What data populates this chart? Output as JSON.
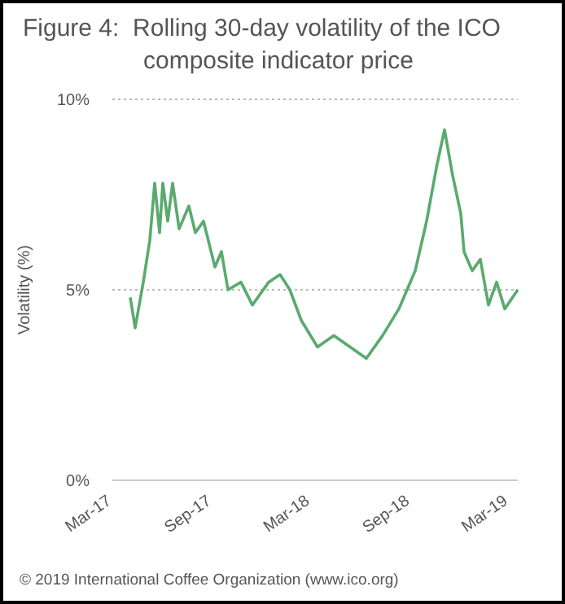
{
  "chart_data": {
    "type": "line",
    "title": "Figure 4:  Rolling 30-day volatility of the ICO composite indicator price",
    "ylabel": "Volatility (%)",
    "annotations": [
      "© 2019 International Coffee Organization (www.ico.org)"
    ],
    "x": [
      "2017-04-03",
      "2017-04-12",
      "2017-04-27",
      "2017-05-09",
      "2017-05-18",
      "2017-05-27",
      "2017-06-02",
      "2017-06-11",
      "2017-06-20",
      "2017-07-02",
      "2017-07-20",
      "2017-08-01",
      "2017-08-16",
      "2017-09-06",
      "2017-09-18",
      "2017-09-30",
      "2017-10-24",
      "2017-11-14",
      "2017-12-14",
      "2018-01-04",
      "2018-01-22",
      "2018-02-12",
      "2018-03-14",
      "2018-04-13",
      "2018-05-13",
      "2018-06-12",
      "2018-07-12",
      "2018-08-11",
      "2018-08-26",
      "2018-09-10",
      "2018-10-01",
      "2018-10-19",
      "2018-11-03",
      "2018-11-18",
      "2018-12-03",
      "2018-12-09",
      "2018-12-24",
      "2019-01-08",
      "2019-01-23",
      "2019-02-07",
      "2019-02-22",
      "2019-03-18"
    ],
    "series": [
      {
        "color": "#5aaa6e",
        "values": [
          4.8,
          4.0,
          5.2,
          6.3,
          7.8,
          6.5,
          7.8,
          6.8,
          7.8,
          6.6,
          7.2,
          6.5,
          6.8,
          5.6,
          6.0,
          5.0,
          5.2,
          4.6,
          5.2,
          5.4,
          5.0,
          4.2,
          3.5,
          3.8,
          3.5,
          3.2,
          3.8,
          4.5,
          5.0,
          5.5,
          6.8,
          8.2,
          9.2,
          8.0,
          7.0,
          6.0,
          5.5,
          5.8,
          4.6,
          5.2,
          4.5,
          5.0
        ]
      }
    ],
    "xlim": [
      "2017-03-01",
      "2019-03-18"
    ],
    "xticks": [
      {
        "value": "2017-03-01",
        "label": "Mar-17"
      },
      {
        "value": "2017-09-01",
        "label": "Sep-17"
      },
      {
        "value": "2018-03-01",
        "label": "Mar-18"
      },
      {
        "value": "2018-09-01",
        "label": "Sep-18"
      },
      {
        "value": "2019-03-01",
        "label": "Mar-19"
      }
    ],
    "ylim": [
      0,
      10
    ],
    "yticks": [
      {
        "value": 0,
        "label": "0%"
      },
      {
        "value": 5,
        "label": "5%"
      },
      {
        "value": 10,
        "label": "10%"
      }
    ],
    "grid": "y",
    "marker": "none",
    "line_style": "solid"
  }
}
